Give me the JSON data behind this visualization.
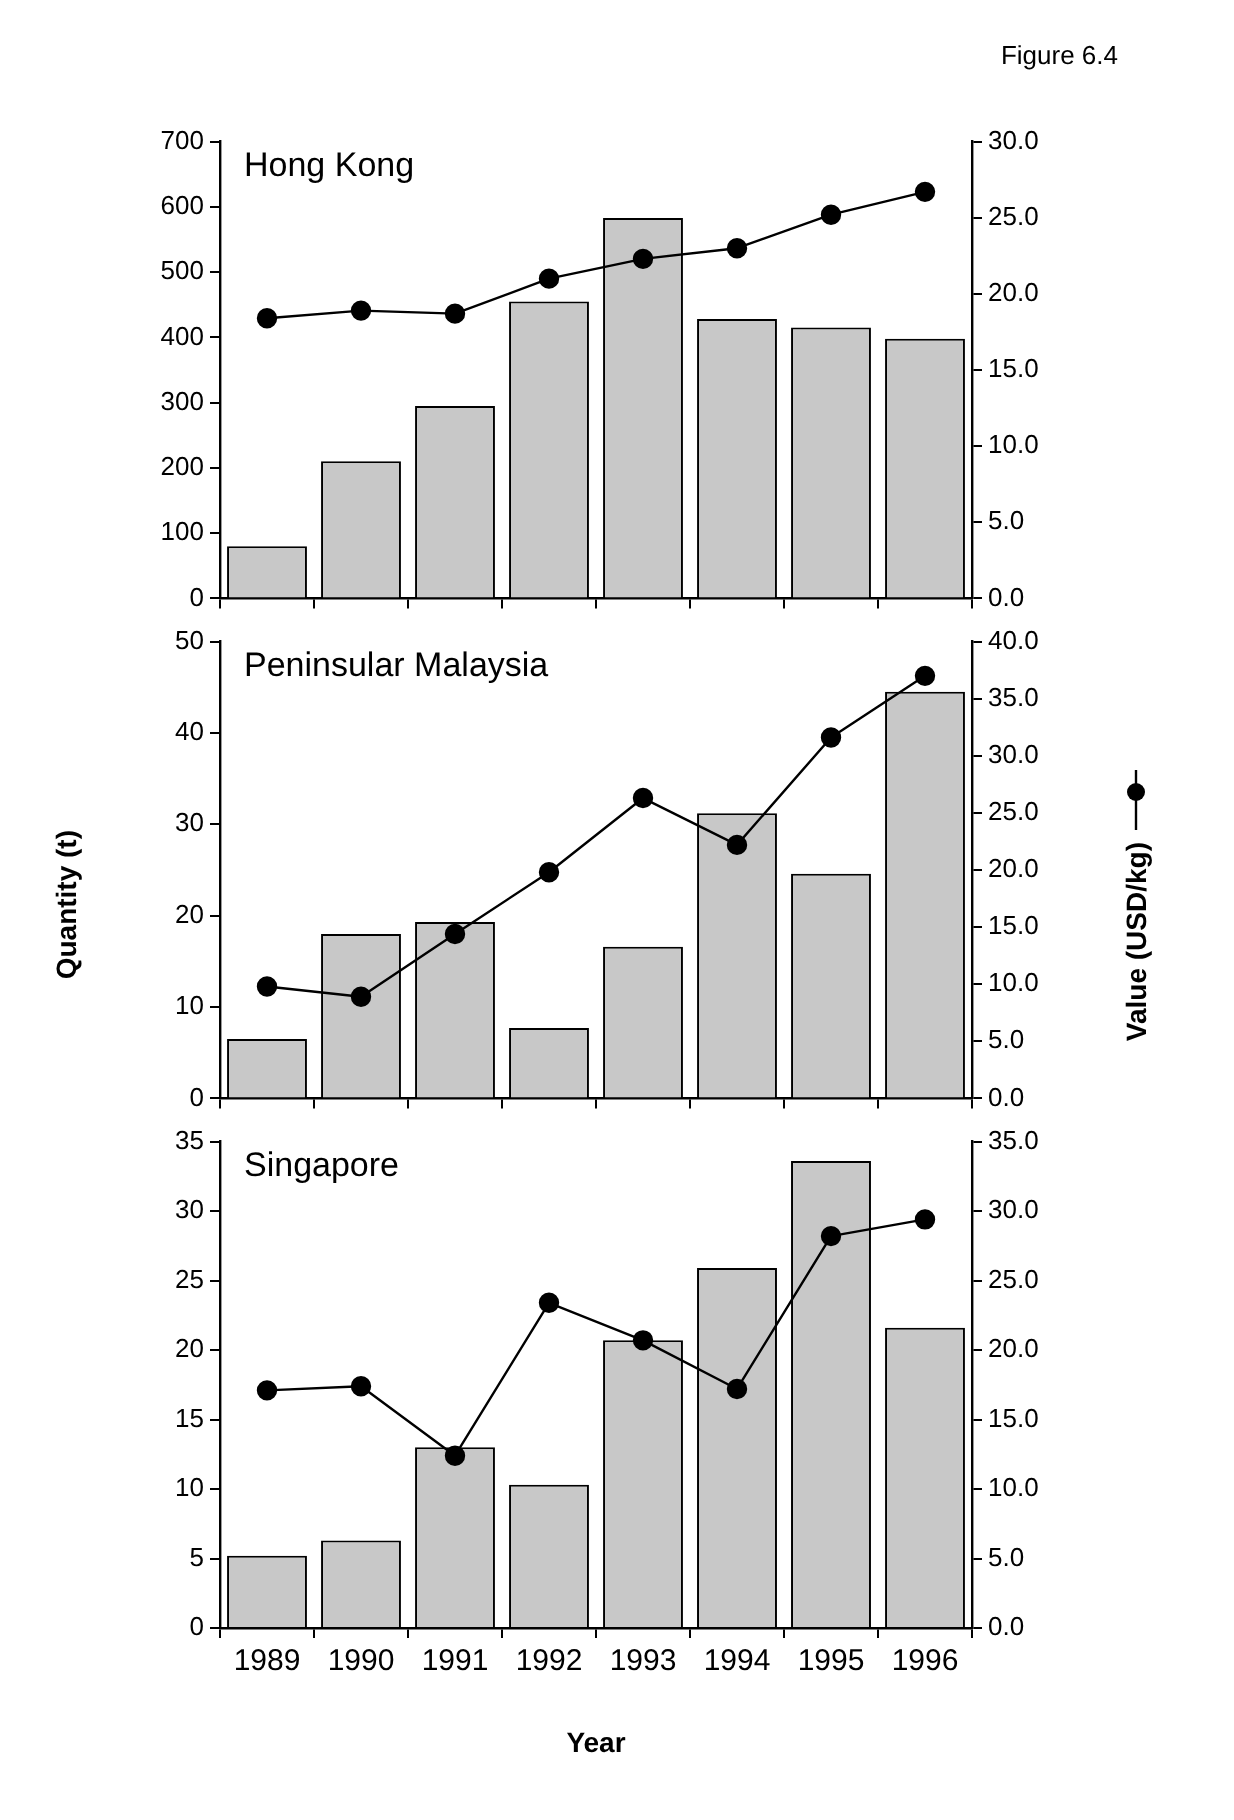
{
  "chart_data": [
    {
      "type": "bar",
      "title": "Hong Kong",
      "annotations": [
        "Figure 6.4"
      ],
      "categories": [
        "1989",
        "1990",
        "1991",
        "1992",
        "1993",
        "1994",
        "1995",
        "1996"
      ],
      "series": [
        {
          "color": "#c8c8c8",
          "values": [
            80,
            210,
            295,
            455,
            583,
            428,
            415,
            398
          ]
        },
        {
          "type": "line",
          "axis": "y2",
          "color": "#000000",
          "values": [
            18.4,
            18.9,
            18.7,
            21.0,
            22.3,
            23.0,
            25.2,
            26.7
          ]
        }
      ],
      "ylim": [
        0,
        700
      ],
      "yticks": [
        0,
        100,
        200,
        300,
        400,
        500,
        600,
        700
      ],
      "y2lim": [
        0,
        30
      ],
      "y2ticks": [
        {
          "value": 0,
          "label": "0.0"
        },
        {
          "value": 5,
          "label": "5.0"
        },
        {
          "value": 10,
          "label": "10.0"
        },
        {
          "value": 15,
          "label": "15.0"
        },
        {
          "value": 20,
          "label": "20.0"
        },
        {
          "value": 25,
          "label": "25.0"
        },
        {
          "value": 30,
          "label": "30.0"
        }
      ],
      "grid": false,
      "marker": "circle",
      "tick_labels": "y"
    },
    {
      "type": "bar",
      "title": "Peninsular Malaysia",
      "ylabel": "Quantity (t)",
      "y2label": "Value (USD/kg)",
      "categories": [
        "1989",
        "1990",
        "1991",
        "1992",
        "1993",
        "1994",
        "1995",
        "1996"
      ],
      "series": [
        {
          "color": "#c8c8c8",
          "values": [
            6.5,
            18.0,
            19.3,
            7.7,
            16.6,
            31.2,
            24.6,
            44.5
          ]
        },
        {
          "type": "line",
          "axis": "y2",
          "color": "#000000",
          "values": [
            9.8,
            8.9,
            14.4,
            19.8,
            26.3,
            22.2,
            31.6,
            37.0
          ]
        }
      ],
      "ylim": [
        0,
        50
      ],
      "yticks": [
        0,
        10,
        20,
        30,
        40,
        50
      ],
      "y2lim": [
        0,
        40
      ],
      "y2ticks": [
        {
          "value": 0,
          "label": "0.0"
        },
        {
          "value": 5,
          "label": "5.0"
        },
        {
          "value": 10,
          "label": "10.0"
        },
        {
          "value": 15,
          "label": "15.0"
        },
        {
          "value": 20,
          "label": "20.0"
        },
        {
          "value": 25,
          "label": "25.0"
        },
        {
          "value": 30,
          "label": "30.0"
        },
        {
          "value": 35,
          "label": "35.0"
        },
        {
          "value": 40,
          "label": "40.0"
        }
      ],
      "grid": false,
      "marker": "circle",
      "tick_labels": "y"
    },
    {
      "type": "bar",
      "title": "Singapore",
      "xlabel": "Year",
      "categories": [
        "1989",
        "1990",
        "1991",
        "1992",
        "1993",
        "1994",
        "1995",
        "1996"
      ],
      "series": [
        {
          "color": "#c8c8c8",
          "values": [
            5.2,
            6.3,
            13.0,
            10.3,
            20.7,
            25.9,
            33.6,
            21.6
          ]
        },
        {
          "type": "line",
          "axis": "y2",
          "color": "#000000",
          "values": [
            17.1,
            17.4,
            12.4,
            23.4,
            20.7,
            17.2,
            28.2,
            29.4
          ]
        }
      ],
      "ylim": [
        0,
        35
      ],
      "yticks": [
        0,
        5,
        10,
        15,
        20,
        25,
        30,
        35
      ],
      "y2lim": [
        0,
        35
      ],
      "y2ticks": [
        {
          "value": 0,
          "label": "0.0"
        },
        {
          "value": 5,
          "label": "5.0"
        },
        {
          "value": 10,
          "label": "10.0"
        },
        {
          "value": 15,
          "label": "15.0"
        },
        {
          "value": 20,
          "label": "20.0"
        },
        {
          "value": 25,
          "label": "25.0"
        },
        {
          "value": 30,
          "label": "30.0"
        },
        {
          "value": 35,
          "label": "35.0"
        }
      ],
      "grid": false,
      "marker": "circle"
    }
  ]
}
